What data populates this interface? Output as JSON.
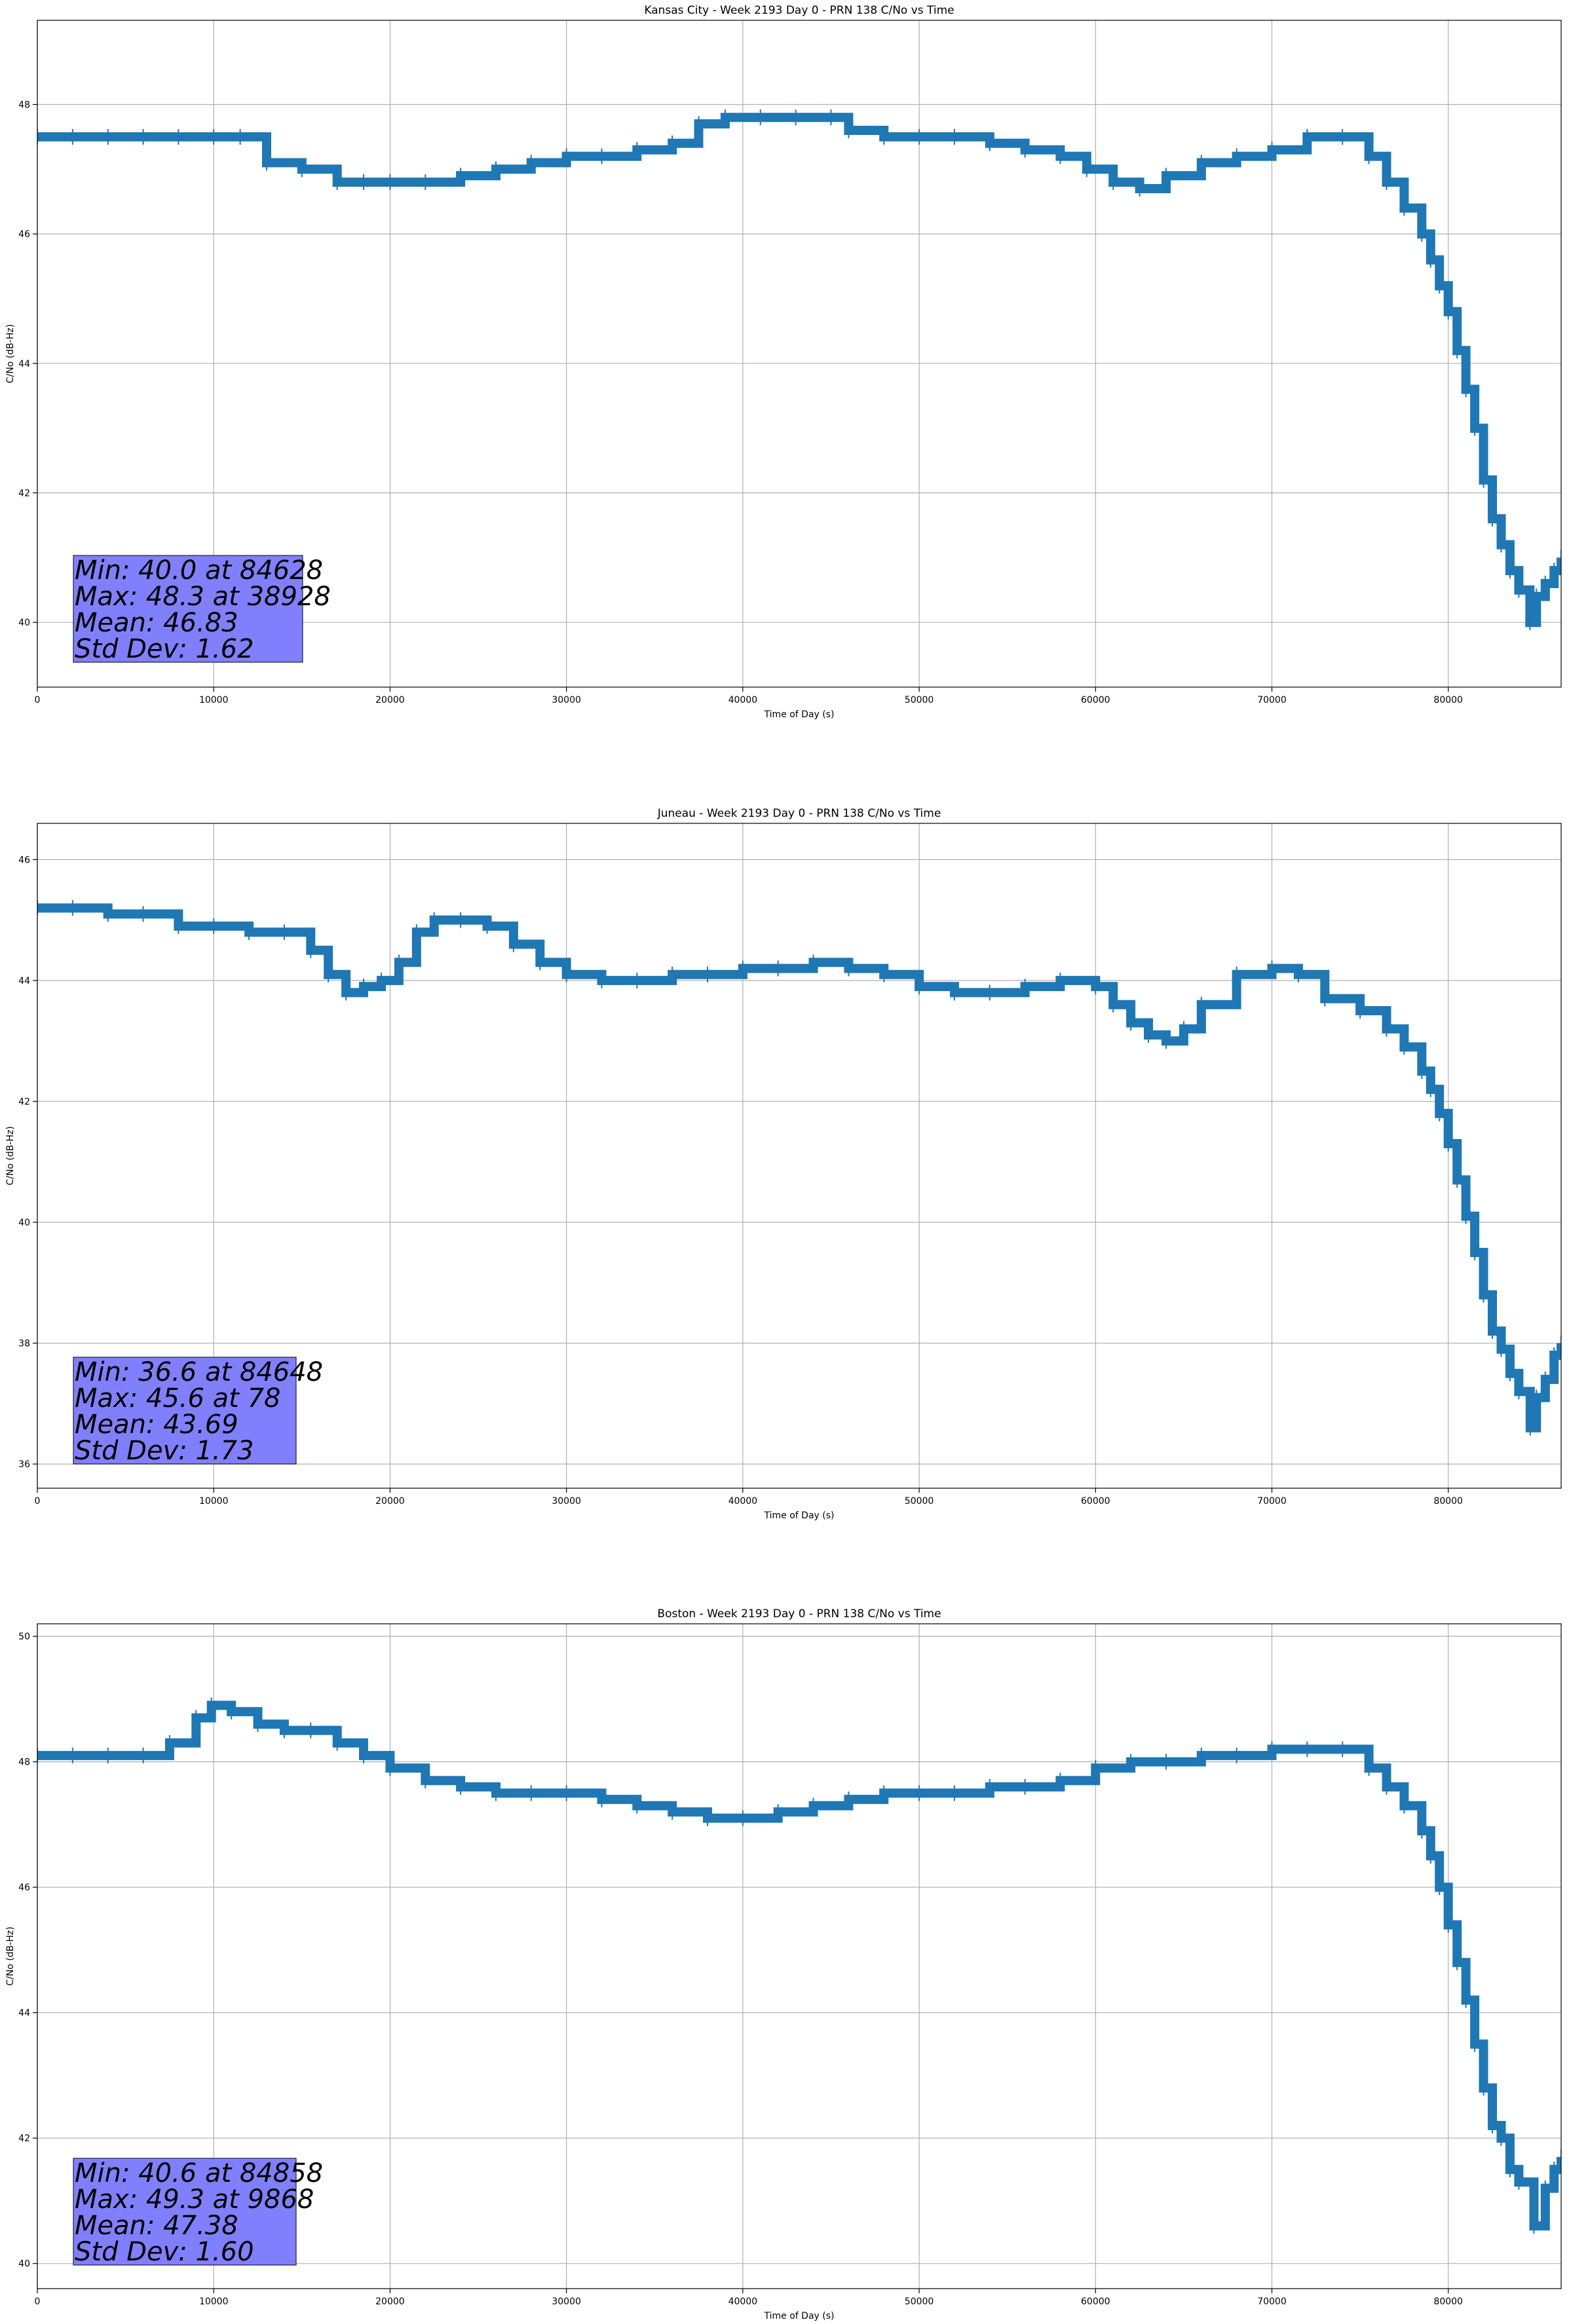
{
  "chart_data": [
    {
      "type": "line",
      "title": "Kansas City - Week 2193 Day 0 - PRN 138 C/No vs Time",
      "xlabel": "Time of Day (s)",
      "ylabel": "C/No (dB-Hz)",
      "xlim": [
        0,
        86400
      ],
      "ylim": [
        39.0,
        49.3
      ],
      "x_ticks": [
        0,
        10000,
        20000,
        30000,
        40000,
        50000,
        60000,
        70000,
        80000
      ],
      "y_ticks": [
        40,
        42,
        44,
        46,
        48
      ],
      "grid": true,
      "color": "#1f77b4",
      "series": [
        {
          "x": [
            0,
            2000,
            4000,
            6000,
            8000,
            10000,
            11500,
            13000,
            15000,
            17000,
            18500,
            20000,
            22000,
            24000,
            26000,
            28000,
            30000,
            32000,
            34000,
            36000,
            37500,
            39000,
            41000,
            43000,
            45000,
            46000,
            48000,
            50000,
            52000,
            54000,
            56000,
            58000,
            59500,
            61000,
            62500,
            64000,
            66000,
            68000,
            70000,
            72000,
            74000,
            75500,
            76500,
            77500,
            78500,
            79000,
            79500,
            80000,
            80500,
            81000,
            81500,
            82000,
            82500,
            83000,
            83500,
            84000,
            84628,
            85000,
            85500,
            86000,
            86400
          ],
          "y": [
            47.5,
            47.5,
            47.5,
            47.5,
            47.5,
            47.5,
            47.5,
            47.1,
            47.0,
            46.8,
            46.8,
            46.8,
            46.8,
            46.9,
            47.0,
            47.1,
            47.2,
            47.2,
            47.3,
            47.4,
            47.7,
            47.8,
            47.8,
            47.8,
            47.8,
            47.6,
            47.5,
            47.5,
            47.5,
            47.4,
            47.3,
            47.2,
            47.0,
            46.8,
            46.7,
            46.9,
            47.1,
            47.2,
            47.3,
            47.5,
            47.5,
            47.2,
            46.8,
            46.4,
            46.0,
            45.6,
            45.2,
            44.8,
            44.2,
            43.6,
            43.0,
            42.2,
            41.6,
            41.2,
            40.8,
            40.5,
            40.0,
            40.4,
            40.6,
            40.8,
            41.0
          ]
        }
      ],
      "stats": [
        "Min: 40.0 at 84628",
        "Max: 48.3 at 38928",
        "Mean: 46.83",
        "Std Dev: 1.62"
      ],
      "stats_box_color": "#8080ff"
    },
    {
      "type": "line",
      "title": "Juneau - Week 2193 Day 0 - PRN 138 C/No vs Time",
      "xlabel": "Time of Day (s)",
      "ylabel": "C/No (dB-Hz)",
      "xlim": [
        0,
        86400
      ],
      "ylim": [
        35.6,
        46.6
      ],
      "x_ticks": [
        0,
        10000,
        20000,
        30000,
        40000,
        50000,
        60000,
        70000,
        80000
      ],
      "y_ticks": [
        36,
        38,
        40,
        42,
        44,
        46
      ],
      "grid": true,
      "color": "#1f77b4",
      "series": [
        {
          "x": [
            0,
            2000,
            4000,
            6000,
            8000,
            10000,
            12000,
            14000,
            15500,
            16500,
            17500,
            18500,
            19500,
            20500,
            21500,
            22500,
            24000,
            25500,
            27000,
            28500,
            30000,
            32000,
            34000,
            36000,
            38000,
            40000,
            42000,
            44000,
            46000,
            48000,
            50000,
            52000,
            54000,
            56000,
            58000,
            60000,
            61000,
            62000,
            63000,
            64000,
            65000,
            66000,
            68000,
            70000,
            71500,
            73000,
            75000,
            76500,
            77500,
            78500,
            79000,
            79500,
            80000,
            80500,
            81000,
            81500,
            82000,
            82500,
            83000,
            83500,
            84000,
            84648,
            85000,
            85500,
            86000,
            86400
          ],
          "y": [
            45.2,
            45.2,
            45.1,
            45.1,
            44.9,
            44.9,
            44.8,
            44.8,
            44.5,
            44.1,
            43.8,
            43.9,
            44.0,
            44.3,
            44.8,
            45.0,
            45.0,
            44.9,
            44.6,
            44.3,
            44.1,
            44.0,
            44.0,
            44.1,
            44.1,
            44.2,
            44.2,
            44.3,
            44.2,
            44.1,
            43.9,
            43.8,
            43.8,
            43.9,
            44.0,
            43.9,
            43.6,
            43.3,
            43.1,
            43.0,
            43.2,
            43.6,
            44.1,
            44.2,
            44.1,
            43.7,
            43.5,
            43.2,
            42.9,
            42.5,
            42.2,
            41.8,
            41.3,
            40.7,
            40.1,
            39.5,
            38.8,
            38.2,
            37.9,
            37.5,
            37.2,
            36.6,
            37.1,
            37.4,
            37.8,
            38.0
          ]
        }
      ],
      "stats": [
        "Min: 36.6 at 84648",
        "Max: 45.6 at 78",
        "Mean: 43.69",
        "Std Dev: 1.73"
      ],
      "stats_box_color": "#8080ff"
    },
    {
      "type": "line",
      "title": "Boston - Week 2193 Day 0 - PRN 138 C/No vs Time",
      "xlabel": "Time of Day (s)",
      "ylabel": "C/No (dB-Hz)",
      "xlim": [
        0,
        86400
      ],
      "ylim": [
        39.6,
        50.2
      ],
      "x_ticks": [
        0,
        10000,
        20000,
        30000,
        40000,
        50000,
        60000,
        70000,
        80000
      ],
      "y_ticks": [
        40,
        42,
        44,
        46,
        48,
        50
      ],
      "grid": true,
      "color": "#1f77b4",
      "series": [
        {
          "x": [
            0,
            2000,
            4000,
            6000,
            7500,
            9000,
            9868,
            11000,
            12500,
            14000,
            15500,
            17000,
            18500,
            20000,
            22000,
            24000,
            26000,
            28000,
            30000,
            32000,
            34000,
            36000,
            38000,
            40000,
            42000,
            44000,
            46000,
            48000,
            50000,
            52000,
            54000,
            56000,
            58000,
            60000,
            62000,
            64000,
            66000,
            68000,
            70000,
            72000,
            74000,
            75500,
            76500,
            77500,
            78500,
            79000,
            79500,
            80000,
            80500,
            81000,
            81500,
            82000,
            82500,
            83000,
            83500,
            84000,
            84858,
            85500,
            86000,
            86400
          ],
          "y": [
            48.1,
            48.1,
            48.1,
            48.1,
            48.3,
            48.7,
            48.9,
            48.8,
            48.6,
            48.5,
            48.5,
            48.3,
            48.1,
            47.9,
            47.7,
            47.6,
            47.5,
            47.5,
            47.5,
            47.4,
            47.3,
            47.2,
            47.1,
            47.1,
            47.2,
            47.3,
            47.4,
            47.5,
            47.5,
            47.5,
            47.6,
            47.6,
            47.7,
            47.9,
            48.0,
            48.0,
            48.1,
            48.1,
            48.2,
            48.2,
            48.2,
            47.9,
            47.6,
            47.3,
            46.9,
            46.5,
            46.0,
            45.4,
            44.8,
            44.2,
            43.5,
            42.8,
            42.2,
            42.0,
            41.5,
            41.3,
            40.6,
            41.2,
            41.5,
            41.7
          ]
        }
      ],
      "stats": [
        "Min: 40.6 at 84858",
        "Max: 49.3 at 9868",
        "Mean: 47.38",
        "Std Dev: 1.60"
      ],
      "stats_box_color": "#8080ff"
    }
  ]
}
